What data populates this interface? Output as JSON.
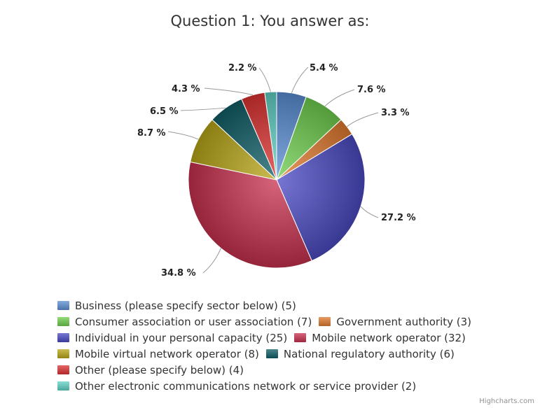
{
  "chart_data": {
    "type": "pie",
    "title": "Question 1: You answer as:",
    "slices": [
      {
        "name": "Business (please specify sector below)",
        "count": 5,
        "percent": 5.4,
        "label": "5.4 %",
        "color": "#5b8fd4"
      },
      {
        "name": "Consumer association or user association",
        "count": 7,
        "percent": 7.6,
        "label": "7.6 %",
        "color": "#6fcf4e"
      },
      {
        "name": "Government authority",
        "count": 3,
        "percent": 3.3,
        "label": "3.3 %",
        "color": "#e07a2e"
      },
      {
        "name": "Individual in your personal capacity",
        "count": 25,
        "percent": 27.2,
        "label": "27.2 %",
        "color": "#4a4ac4"
      },
      {
        "name": "Mobile network operator",
        "count": 32,
        "percent": 34.8,
        "label": "34.8 %",
        "color": "#c8304f"
      },
      {
        "name": "Mobile virtual network operator",
        "count": 8,
        "percent": 8.7,
        "label": "8.7 %",
        "color": "#b8a617"
      },
      {
        "name": "National regulatory authority",
        "count": 6,
        "percent": 6.5,
        "label": "6.5 %",
        "color": "#0f5e66"
      },
      {
        "name": "Other (please specify below)",
        "count": 4,
        "percent": 4.3,
        "label": "4.3 %",
        "color": "#dd3333"
      },
      {
        "name": "Other electronic communications network or service provider",
        "count": 2,
        "percent": 2.2,
        "label": "2.2 %",
        "color": "#5fd1c4"
      }
    ],
    "legend_rows": [
      [
        0
      ],
      [
        1,
        2
      ],
      [
        3,
        4
      ],
      [
        5,
        6
      ],
      [
        7
      ],
      [
        8
      ]
    ],
    "legend_placement": "bottom",
    "credits": "Highcharts.com"
  }
}
